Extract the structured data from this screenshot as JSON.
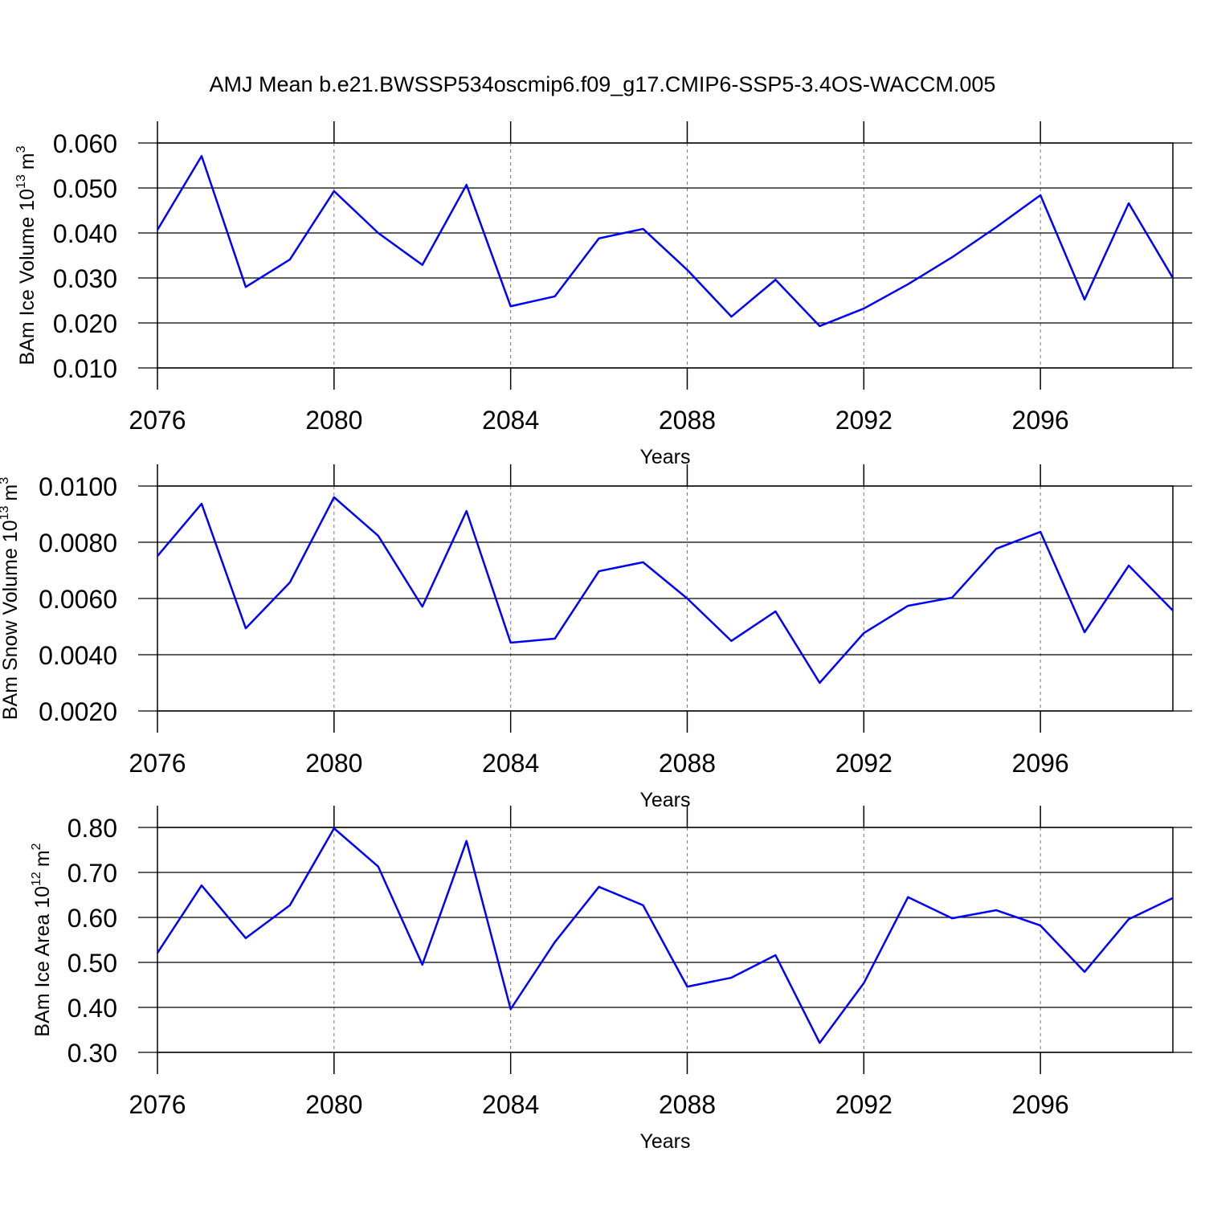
{
  "chart_data": [
    {
      "type": "line",
      "title": "AMJ Mean b.e21.BWSSP534oscmip6.f09_g17.CMIP6-SSP5-3.4OS-WACCM.005",
      "ylabel_parts": [
        "BAm Ice Volume 10",
        "13",
        "m",
        "3"
      ],
      "xlabel": "Years",
      "x": [
        2076,
        2077,
        2078,
        2079,
        2080,
        2081,
        2082,
        2083,
        2084,
        2085,
        2086,
        2087,
        2088,
        2089,
        2090,
        2091,
        2092,
        2093,
        2094,
        2095,
        2096,
        2097,
        2098,
        2099
      ],
      "series": [
        {
          "color": "#0000ff",
          "values": [
            0.0407,
            0.0571,
            0.028,
            0.0341,
            0.0493,
            0.04,
            0.0329,
            0.0507,
            0.0237,
            0.0259,
            0.0388,
            0.0409,
            0.0318,
            0.0214,
            0.0296,
            0.0193,
            0.0232,
            0.0286,
            0.0346,
            0.0413,
            0.0484,
            0.0252,
            0.0466,
            0.03
          ]
        }
      ],
      "xlim": [
        2076,
        2099
      ],
      "xticks": [
        2076,
        2080,
        2084,
        2088,
        2092,
        2096
      ],
      "ylim": [
        0.01,
        0.06
      ],
      "yticks": [
        {
          "value": 0.01,
          "label": "0.010"
        },
        {
          "value": 0.02,
          "label": "0.020"
        },
        {
          "value": 0.03,
          "label": "0.030"
        },
        {
          "value": 0.04,
          "label": "0.040"
        },
        {
          "value": 0.05,
          "label": "0.050"
        },
        {
          "value": 0.06,
          "label": "0.060"
        }
      ],
      "grid": "x"
    },
    {
      "type": "line",
      "ylabel_parts": [
        "BAm Snow Volume 10",
        "13",
        "m",
        "3"
      ],
      "xlabel": "Years",
      "x": [
        2076,
        2077,
        2078,
        2079,
        2080,
        2081,
        2082,
        2083,
        2084,
        2085,
        2086,
        2087,
        2088,
        2089,
        2090,
        2091,
        2092,
        2093,
        2094,
        2095,
        2096,
        2097,
        2098,
        2099
      ],
      "series": [
        {
          "color": "#0000ff",
          "values": [
            0.00751,
            0.00937,
            0.00494,
            0.00657,
            0.0096,
            0.00823,
            0.00571,
            0.00911,
            0.00443,
            0.00457,
            0.00697,
            0.00729,
            0.006,
            0.00449,
            0.00554,
            0.003,
            0.00477,
            0.00574,
            0.00603,
            0.00777,
            0.00837,
            0.0048,
            0.00717,
            0.00557
          ]
        }
      ],
      "xlim": [
        2076,
        2099
      ],
      "xticks": [
        2076,
        2080,
        2084,
        2088,
        2092,
        2096
      ],
      "ylim": [
        0.002,
        0.01
      ],
      "yticks": [
        {
          "value": 0.002,
          "label": "0.0020"
        },
        {
          "value": 0.004,
          "label": "0.0040"
        },
        {
          "value": 0.006,
          "label": "0.0060"
        },
        {
          "value": 0.008,
          "label": "0.0080"
        },
        {
          "value": 0.01,
          "label": "0.0100"
        }
      ],
      "grid": "x"
    },
    {
      "type": "line",
      "ylabel_parts": [
        "BAm Ice Area 10",
        "12",
        "m",
        "2"
      ],
      "xlabel": "Years",
      "x": [
        2076,
        2077,
        2078,
        2079,
        2080,
        2081,
        2082,
        2083,
        2084,
        2085,
        2086,
        2087,
        2088,
        2089,
        2090,
        2091,
        2092,
        2093,
        2094,
        2095,
        2096,
        2097,
        2098,
        2099
      ],
      "series": [
        {
          "color": "#0000ff",
          "values": [
            0.521,
            0.671,
            0.554,
            0.627,
            0.798,
            0.713,
            0.495,
            0.77,
            0.396,
            0.545,
            0.668,
            0.627,
            0.446,
            0.466,
            0.516,
            0.321,
            0.454,
            0.645,
            0.598,
            0.616,
            0.582,
            0.479,
            0.596,
            0.643
          ]
        }
      ],
      "xlim": [
        2076,
        2099
      ],
      "xticks": [
        2076,
        2080,
        2084,
        2088,
        2092,
        2096
      ],
      "ylim": [
        0.3,
        0.8
      ],
      "yticks": [
        {
          "value": 0.3,
          "label": "0.30"
        },
        {
          "value": 0.4,
          "label": "0.40"
        },
        {
          "value": 0.5,
          "label": "0.50"
        },
        {
          "value": 0.6,
          "label": "0.60"
        },
        {
          "value": 0.7,
          "label": "0.70"
        },
        {
          "value": 0.8,
          "label": "0.80"
        }
      ],
      "grid": "x"
    }
  ]
}
